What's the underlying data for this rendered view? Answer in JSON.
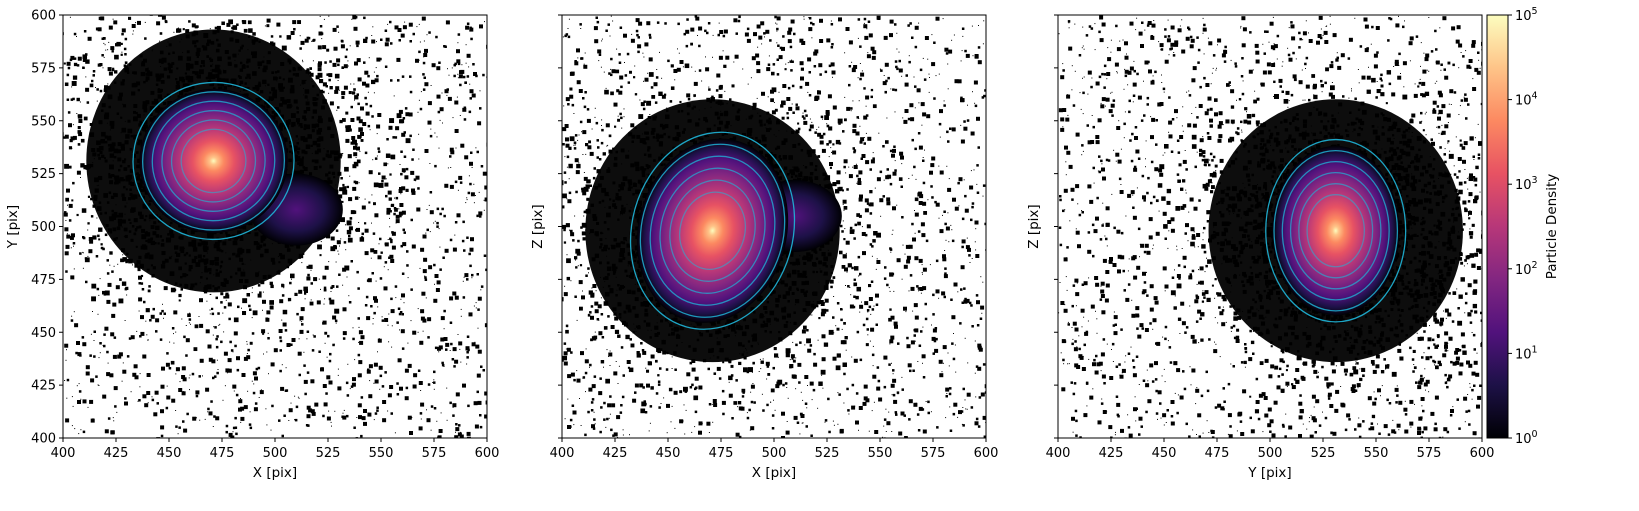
{
  "chart_data": [
    {
      "type": "heatmap",
      "panel": "x-y projection",
      "xlabel": "X [pix]",
      "ylabel": "Y [pix]",
      "xlim": [
        400,
        600
      ],
      "ylim": [
        400,
        600
      ],
      "xticks": [
        400,
        425,
        450,
        475,
        500,
        525,
        550,
        575,
        600
      ],
      "yticks": [
        400,
        425,
        450,
        475,
        500,
        525,
        550,
        575,
        600
      ],
      "show_ytick_labels": true,
      "main_peak": {
        "x": 471,
        "y": 531,
        "density": 100000
      },
      "secondary_clump": {
        "x": 510,
        "y": 508,
        "density": 10
      },
      "contour_levels": 6,
      "contour_color": "#1fb6d9"
    },
    {
      "type": "heatmap",
      "panel": "x-z projection",
      "xlabel": "X [pix]",
      "ylabel": "Z [pix]",
      "xlim": [
        400,
        600
      ],
      "ylim": [
        400,
        600
      ],
      "xticks": [
        400,
        425,
        450,
        475,
        500,
        525,
        550,
        575,
        600
      ],
      "yticks": [
        400,
        425,
        450,
        475,
        500,
        525,
        550,
        575,
        600
      ],
      "show_ytick_labels": false,
      "main_peak": {
        "x": 471,
        "y": 498,
        "density": 100000
      },
      "secondary_clump": {
        "x": 510,
        "y": 505,
        "density": 10
      },
      "contour_levels": 6,
      "contour_color": "#1fb6d9"
    },
    {
      "type": "heatmap",
      "panel": "y-z projection",
      "xlabel": "Y [pix]",
      "ylabel": "Z [pix]",
      "xlim": [
        400,
        600
      ],
      "ylim": [
        400,
        600
      ],
      "xticks": [
        400,
        425,
        450,
        475,
        500,
        525,
        550,
        575,
        600
      ],
      "yticks": [
        400,
        425,
        450,
        475,
        500,
        525,
        550,
        575,
        600
      ],
      "show_ytick_labels": false,
      "main_peak": {
        "x": 531,
        "y": 498,
        "density": 100000
      },
      "contour_levels": 6,
      "contour_color": "#1fb6d9"
    }
  ],
  "colorbar": {
    "label": "Particle Density",
    "scale": "log",
    "range": [
      1,
      100000
    ],
    "ticks": [
      {
        "value": 1,
        "base": "10",
        "exp": "0"
      },
      {
        "value": 10,
        "base": "10",
        "exp": "1"
      },
      {
        "value": 100,
        "base": "10",
        "exp": "2"
      },
      {
        "value": 1000,
        "base": "10",
        "exp": "3"
      },
      {
        "value": 10000,
        "base": "10",
        "exp": "4"
      },
      {
        "value": 100000,
        "base": "10",
        "exp": "5"
      }
    ],
    "colormap": [
      "#000004",
      "#1d1147",
      "#51127c",
      "#822681",
      "#b73779",
      "#e75263",
      "#fc8961",
      "#fec488",
      "#fcfdbf"
    ]
  }
}
